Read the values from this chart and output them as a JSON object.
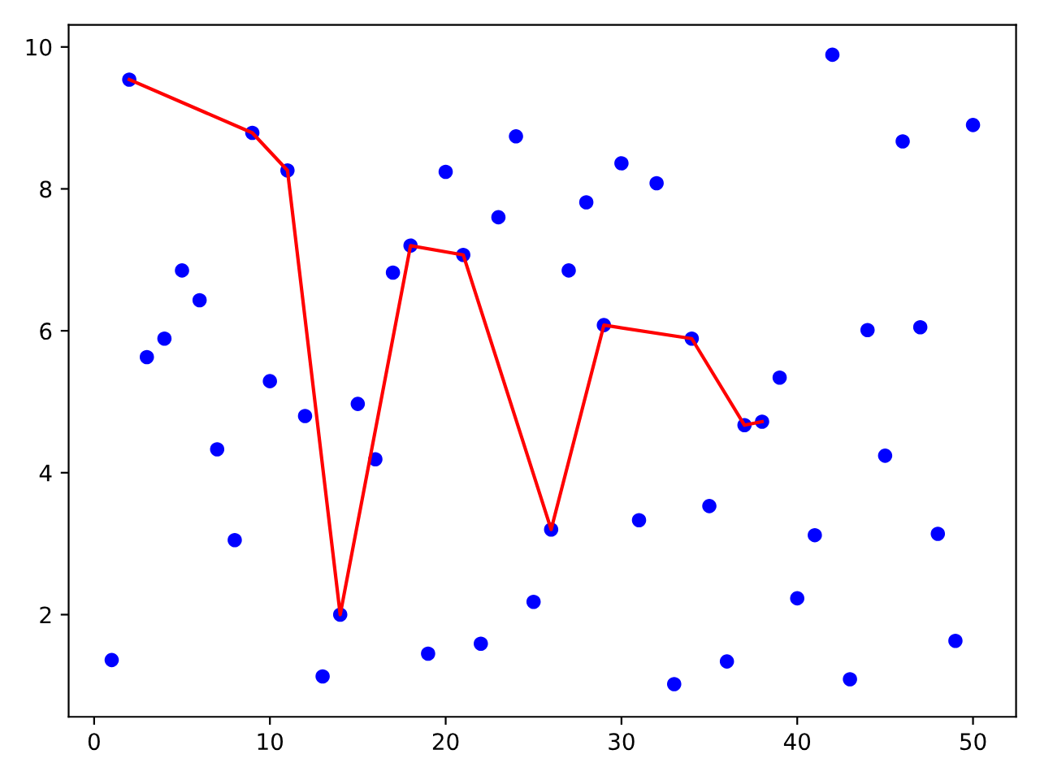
{
  "chart_data": {
    "type": "scatter",
    "xlim": [
      -1.45,
      52.45
    ],
    "ylim": [
      0.56,
      10.31
    ],
    "xticks": [
      0,
      10,
      20,
      30,
      40,
      50
    ],
    "yticks": [
      2,
      4,
      6,
      8,
      10
    ],
    "series": [
      {
        "color": "#0000ff",
        "marker": "circle",
        "x": [
          1,
          2,
          3,
          4,
          5,
          6,
          7,
          8,
          9,
          10,
          11,
          12,
          13,
          14,
          15,
          16,
          17,
          18,
          19,
          20,
          21,
          22,
          23,
          24,
          25,
          26,
          27,
          28,
          29,
          30,
          31,
          32,
          33,
          34,
          35,
          36,
          37,
          38,
          39,
          40,
          41,
          42,
          43,
          44,
          45,
          46,
          47,
          48,
          49,
          50
        ],
        "values": [
          1.36,
          9.54,
          5.63,
          5.89,
          6.85,
          6.43,
          4.33,
          3.05,
          8.79,
          5.29,
          8.26,
          4.8,
          1.13,
          2.0,
          4.97,
          4.19,
          6.82,
          7.2,
          1.45,
          8.24,
          7.07,
          1.59,
          7.6,
          8.74,
          2.18,
          3.2,
          6.85,
          7.81,
          6.08,
          8.36,
          3.33,
          8.08,
          1.02,
          5.89,
          3.53,
          1.34,
          4.67,
          4.72,
          5.34,
          2.23,
          3.12,
          9.89,
          1.09,
          6.01,
          4.24,
          8.67,
          6.05,
          3.14,
          1.63,
          8.9
        ]
      },
      {
        "type": "line",
        "color": "#ff0000",
        "marker": "none",
        "line_style": "solid",
        "x": [
          2,
          9,
          11,
          14,
          18,
          21,
          26,
          29,
          34,
          37,
          38
        ],
        "values": [
          9.54,
          8.79,
          8.26,
          2.0,
          7.2,
          7.07,
          3.2,
          6.08,
          5.89,
          4.67,
          4.72
        ]
      }
    ]
  }
}
